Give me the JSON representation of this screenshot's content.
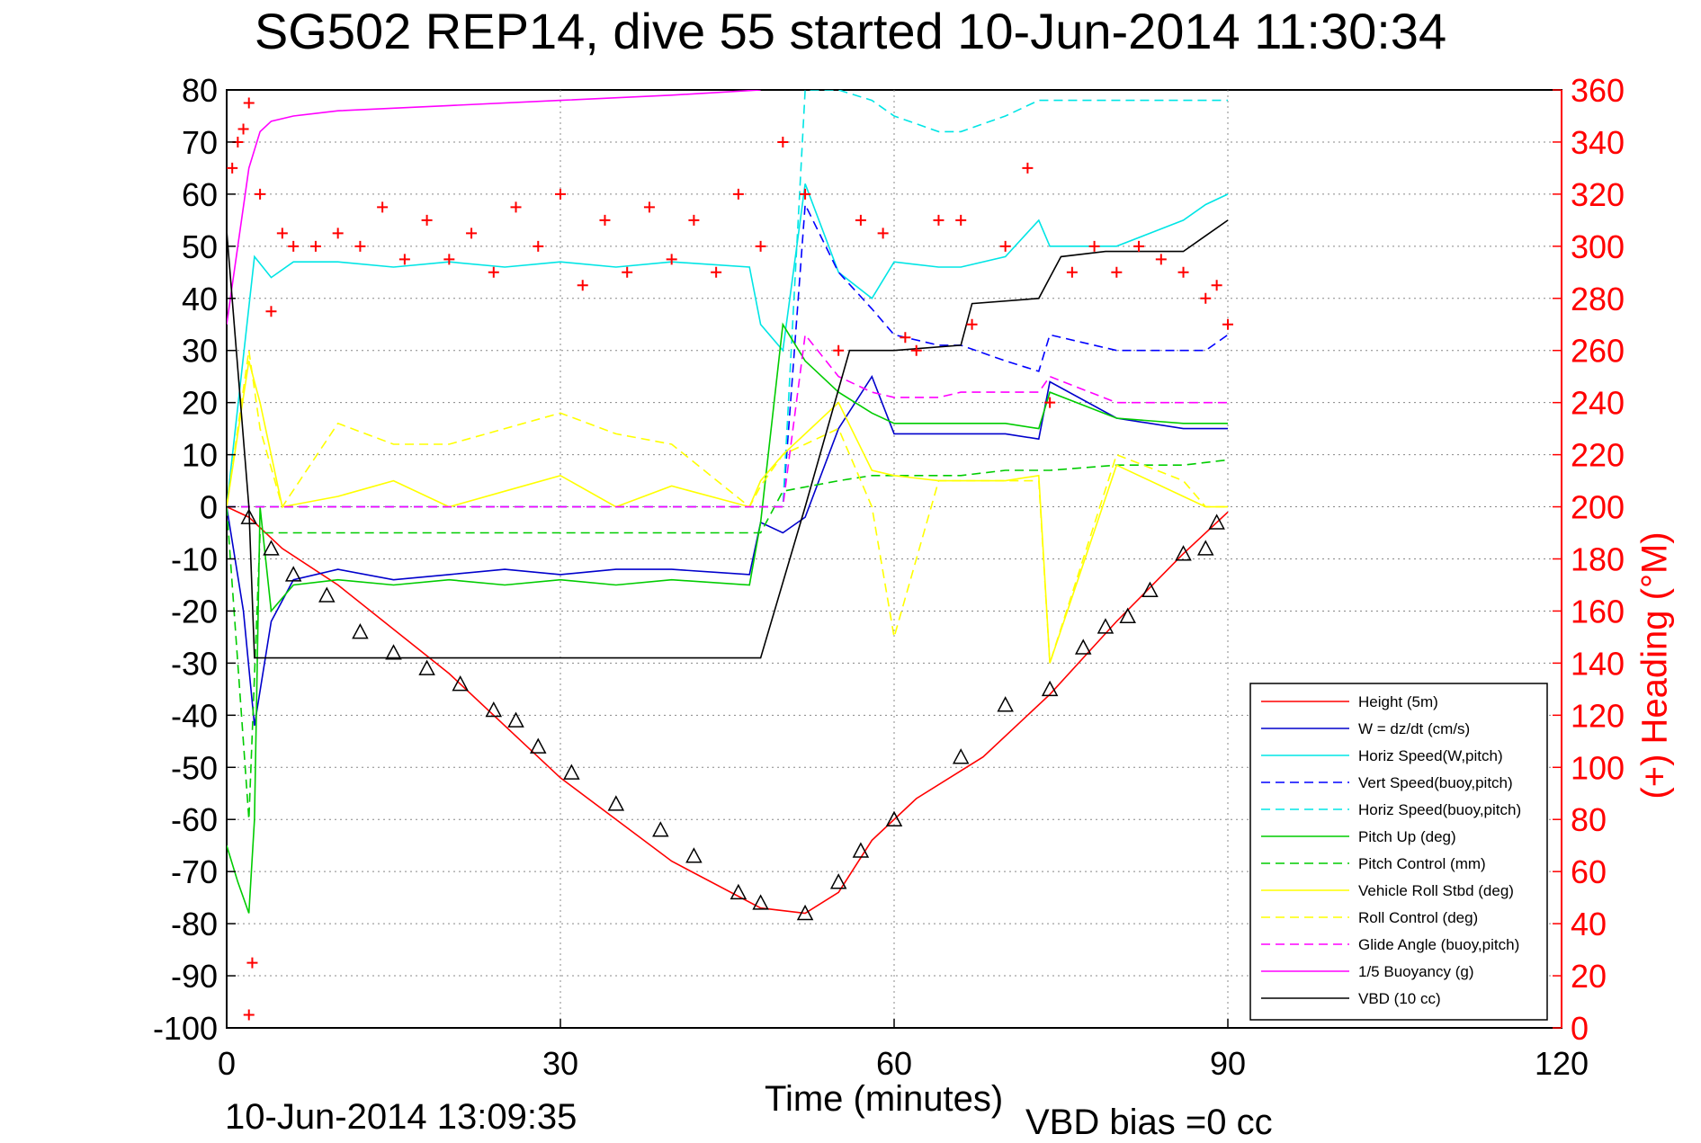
{
  "title": "SG502 REP14, dive 55 started 10-Jun-2014 11:30:34",
  "footer_left": "10-Jun-2014 13:09:35",
  "footer_right": "VBD bias =0 cc",
  "chart_data": {
    "type": "line",
    "xlabel": "Time (minutes)",
    "ylabel": "",
    "ylabel_right": "(+) Heading (°M)",
    "xlim": [
      0,
      120
    ],
    "ylim": [
      -100,
      80
    ],
    "ylim_right": [
      0,
      360
    ],
    "xticks": [
      0,
      30,
      60,
      90,
      120
    ],
    "yticks": [
      -100,
      -90,
      -80,
      -70,
      -60,
      -50,
      -40,
      -30,
      -20,
      -10,
      0,
      10,
      20,
      30,
      40,
      50,
      60,
      70,
      80
    ],
    "yticks_right": [
      0,
      20,
      40,
      60,
      80,
      100,
      120,
      140,
      160,
      180,
      200,
      220,
      240,
      260,
      280,
      300,
      320,
      340,
      360
    ],
    "grid": true,
    "legend_position": "lower-right",
    "colors": {
      "height": "#ff0000",
      "w": "#0000cc",
      "horiz_w": "#00e5e5",
      "vert_buoy": "#0000ff",
      "horiz_buoy": "#00e5e5",
      "pitch_up": "#00cc00",
      "pitch_ctrl": "#00cc00",
      "roll": "#ffff00",
      "roll_ctrl": "#ffff00",
      "glide": "#ff00ff",
      "buoyancy": "#ff00ff",
      "vbd": "#000000",
      "heading": "#ff0000"
    },
    "series": [
      {
        "name": "Height (5m)",
        "key": "height",
        "style": "solid",
        "x": [
          0,
          2,
          5,
          10,
          20,
          30,
          40,
          48,
          52,
          55,
          58,
          62,
          68,
          74,
          80,
          86,
          90
        ],
        "y": [
          0,
          -2,
          -8,
          -15,
          -32,
          -52,
          -68,
          -77,
          -78,
          -74,
          -64,
          -56,
          -48,
          -36,
          -22,
          -9,
          -1
        ]
      },
      {
        "name": "W = dz/dt (cm/s)",
        "key": "w",
        "style": "solid",
        "x": [
          0,
          1.5,
          2.5,
          4,
          6,
          10,
          15,
          20,
          25,
          30,
          35,
          40,
          47,
          48,
          50,
          52,
          55,
          58,
          60,
          64,
          66,
          70,
          73,
          74,
          80,
          86,
          88,
          90
        ],
        "y": [
          0,
          -20,
          -42,
          -22,
          -14,
          -12,
          -14,
          -13,
          -12,
          -13,
          -12,
          -12,
          -13,
          -3,
          -5,
          -2,
          15,
          25,
          14,
          14,
          14,
          14,
          13,
          24,
          17,
          15,
          15,
          15
        ]
      },
      {
        "name": "Horiz Speed(W,pitch)",
        "key": "horiz_w",
        "style": "solid",
        "x": [
          0,
          2.5,
          4,
          6,
          10,
          15,
          20,
          25,
          30,
          35,
          40,
          47,
          48,
          50,
          52,
          55,
          58,
          60,
          64,
          66,
          70,
          73,
          74,
          80,
          86,
          88,
          90
        ],
        "y": [
          0,
          48,
          44,
          47,
          47,
          46,
          47,
          46,
          47,
          46,
          47,
          46,
          35,
          30,
          62,
          45,
          40,
          47,
          46,
          46,
          48,
          55,
          50,
          50,
          55,
          58,
          60
        ]
      },
      {
        "name": "Vert Speed(buoy,pitch)",
        "key": "vert_buoy",
        "style": "dashed",
        "x": [
          0,
          48,
          50,
          52,
          55,
          58,
          60,
          64,
          66,
          70,
          73,
          74,
          80,
          86,
          88,
          90
        ],
        "y": [
          0,
          0,
          0,
          58,
          45,
          38,
          33,
          31,
          31,
          28,
          26,
          33,
          30,
          30,
          30,
          33
        ]
      },
      {
        "name": "Horiz Speed(buoy,pitch)",
        "key": "horiz_buoy",
        "style": "dashed",
        "x": [
          0,
          48,
          50,
          52,
          55,
          58,
          60,
          64,
          66,
          70,
          73,
          74,
          80,
          86,
          88,
          90
        ],
        "y": [
          0,
          0,
          0,
          80,
          80,
          78,
          75,
          72,
          72,
          75,
          78,
          78,
          78,
          78,
          78,
          78
        ]
      },
      {
        "name": "Pitch Up (deg)",
        "key": "pitch_up",
        "style": "solid",
        "x": [
          0,
          1,
          2,
          2.5,
          3,
          4,
          6,
          10,
          15,
          20,
          25,
          30,
          35,
          40,
          47,
          48,
          50,
          52,
          55,
          58,
          60,
          64,
          66,
          70,
          73,
          74,
          80,
          86,
          88,
          90
        ],
        "y": [
          -65,
          -72,
          -78,
          -60,
          0,
          -20,
          -15,
          -14,
          -15,
          -14,
          -15,
          -14,
          -15,
          -14,
          -15,
          -3,
          35,
          28,
          22,
          18,
          16,
          16,
          16,
          16,
          15,
          22,
          17,
          16,
          16,
          16
        ]
      },
      {
        "name": "Pitch Control (mm)",
        "key": "pitch_ctrl",
        "style": "dashed",
        "x": [
          0,
          2,
          3,
          5,
          10,
          20,
          30,
          40,
          48,
          50,
          55,
          58,
          62,
          66,
          70,
          74,
          80,
          86,
          90
        ],
        "y": [
          0,
          -60,
          -5,
          -5,
          -5,
          -5,
          -5,
          -5,
          -5,
          3,
          5,
          6,
          6,
          6,
          7,
          7,
          8,
          8,
          9
        ]
      },
      {
        "name": "Vehicle Roll Stbd (deg)",
        "key": "roll",
        "style": "solid",
        "x": [
          0,
          2,
          3,
          5,
          10,
          15,
          20,
          25,
          30,
          35,
          40,
          47,
          48,
          50,
          55,
          58,
          60,
          64,
          66,
          70,
          73,
          74,
          80,
          86,
          88,
          90
        ],
        "y": [
          0,
          28,
          20,
          0,
          2,
          5,
          0,
          3,
          6,
          0,
          4,
          0,
          5,
          10,
          20,
          7,
          6,
          5,
          5,
          5,
          6,
          -30,
          8,
          2,
          0,
          0
        ]
      },
      {
        "name": "Roll Control (deg)",
        "key": "roll_ctrl",
        "style": "dashed",
        "x": [
          0,
          2,
          3,
          5,
          10,
          15,
          20,
          25,
          30,
          35,
          40,
          47,
          48,
          50,
          55,
          58,
          60,
          64,
          66,
          70,
          73,
          74,
          80,
          86,
          88,
          90
        ],
        "y": [
          0,
          30,
          15,
          0,
          16,
          12,
          12,
          15,
          18,
          14,
          12,
          0,
          4,
          10,
          15,
          0,
          -25,
          5,
          5,
          5,
          5,
          -30,
          10,
          5,
          0,
          0
        ]
      },
      {
        "name": "Glide Angle (buoy,pitch)",
        "key": "glide",
        "style": "dashed",
        "x": [
          0,
          48,
          50,
          52,
          55,
          58,
          60,
          64,
          66,
          70,
          73,
          74,
          80,
          86,
          88,
          90
        ],
        "y": [
          0,
          0,
          0,
          33,
          25,
          22,
          21,
          21,
          22,
          22,
          22,
          25,
          20,
          20,
          20,
          20
        ]
      },
      {
        "name": "1/5 Buoyancy (g)",
        "key": "buoyancy",
        "style": "solid",
        "x": [
          0,
          2,
          3,
          4,
          6,
          10,
          20,
          30,
          40,
          48
        ],
        "y": [
          35,
          65,
          72,
          74,
          75,
          76,
          77,
          78,
          79,
          80
        ]
      },
      {
        "name": "VBD (10 cc)",
        "key": "vbd",
        "style": "solid",
        "x": [
          0,
          2,
          2.5,
          5,
          10,
          20,
          30,
          40,
          48,
          52,
          56,
          57,
          60,
          66,
          67,
          73,
          74,
          75,
          79,
          86,
          88,
          90
        ],
        "y": [
          53,
          0,
          -29,
          -29,
          -29,
          -29,
          -29,
          -29,
          -29,
          0,
          30,
          30,
          30,
          31,
          39,
          40,
          44,
          48,
          49,
          49,
          52,
          55
        ]
      },
      {
        "name": "Heading (+)",
        "key": "heading",
        "style": "marker-plus",
        "axis": "right",
        "x": [
          0.5,
          1,
          1.5,
          2,
          3,
          4,
          5,
          6,
          8,
          10,
          12,
          14,
          16,
          18,
          20,
          22,
          24,
          26,
          28,
          30,
          32,
          34,
          36,
          38,
          40,
          42,
          44,
          46,
          48,
          50,
          52,
          55,
          57,
          59,
          61,
          62,
          64,
          66,
          67,
          70,
          72,
          74,
          76,
          78,
          80,
          82,
          84,
          86,
          88,
          89,
          90,
          2,
          2.3
        ],
        "y": [
          330,
          340,
          345,
          355,
          320,
          275,
          305,
          300,
          300,
          305,
          300,
          315,
          295,
          310,
          295,
          305,
          290,
          315,
          300,
          320,
          285,
          310,
          290,
          315,
          295,
          310,
          290,
          320,
          300,
          340,
          320,
          260,
          310,
          305,
          265,
          260,
          310,
          310,
          270,
          300,
          330,
          240,
          290,
          300,
          290,
          300,
          295,
          290,
          280,
          285,
          270,
          5,
          25
        ]
      },
      {
        "name": "Triangle markers",
        "key": "markers",
        "style": "marker-triangle",
        "x": [
          2,
          4,
          6,
          9,
          12,
          15,
          18,
          21,
          24,
          26,
          28,
          31,
          35,
          39,
          42,
          46,
          48,
          52,
          55,
          57,
          60,
          66,
          70,
          74,
          77,
          79,
          81,
          83,
          86,
          88,
          89
        ],
        "y": [
          -2,
          -8,
          -13,
          -17,
          -24,
          -28,
          -31,
          -34,
          -39,
          -41,
          -46,
          -51,
          -57,
          -62,
          -67,
          -74,
          -76,
          -78,
          -72,
          -66,
          -60,
          -48,
          -38,
          -35,
          -27,
          -23,
          -21,
          -16,
          -9,
          -8,
          -3
        ]
      }
    ]
  }
}
